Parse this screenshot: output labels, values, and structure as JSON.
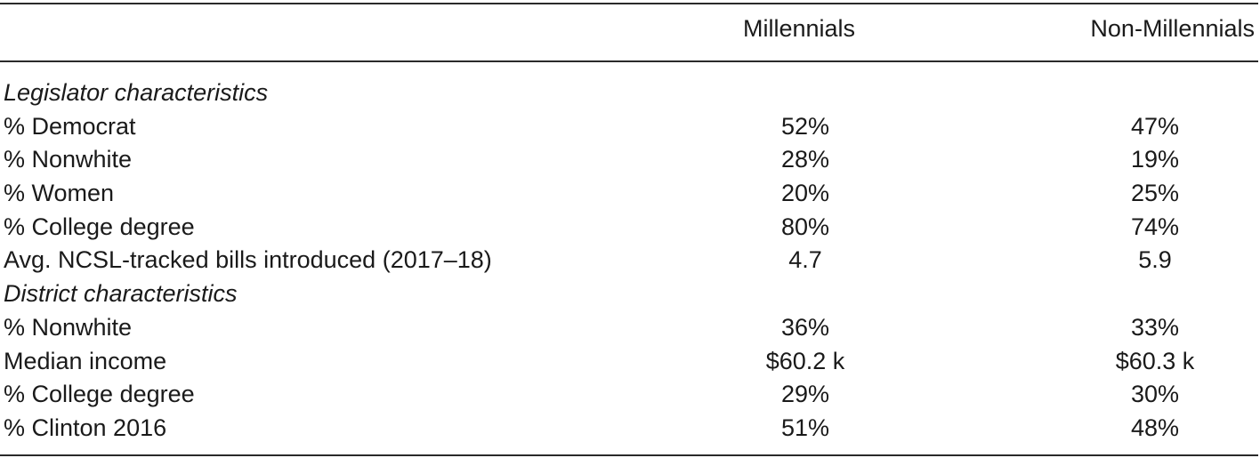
{
  "columns": [
    "Millennials",
    "Non-Millennials"
  ],
  "rows": [
    {
      "type": "section",
      "label": "Legislator characteristics"
    },
    {
      "type": "data",
      "label": "% Democrat",
      "values": [
        "52%",
        "47%"
      ]
    },
    {
      "type": "data",
      "label": "% Nonwhite",
      "values": [
        "28%",
        "19%"
      ]
    },
    {
      "type": "data",
      "label": "% Women",
      "values": [
        "20%",
        "25%"
      ]
    },
    {
      "type": "data",
      "label": "% College degree",
      "values": [
        "80%",
        "74%"
      ]
    },
    {
      "type": "data",
      "label": "Avg. NCSL-tracked bills introduced (2017–18)",
      "values": [
        "4.7",
        "5.9"
      ]
    },
    {
      "type": "section",
      "label": "District characteristics"
    },
    {
      "type": "data",
      "label": "% Nonwhite",
      "values": [
        "36%",
        "33%"
      ]
    },
    {
      "type": "data",
      "label": "Median income",
      "values": [
        "$60.2 k",
        "$60.3 k"
      ]
    },
    {
      "type": "data",
      "label": "% College degree",
      "values": [
        "29%",
        "30%"
      ]
    },
    {
      "type": "data",
      "label": "% Clinton 2016",
      "values": [
        "51%",
        "48%"
      ]
    }
  ]
}
